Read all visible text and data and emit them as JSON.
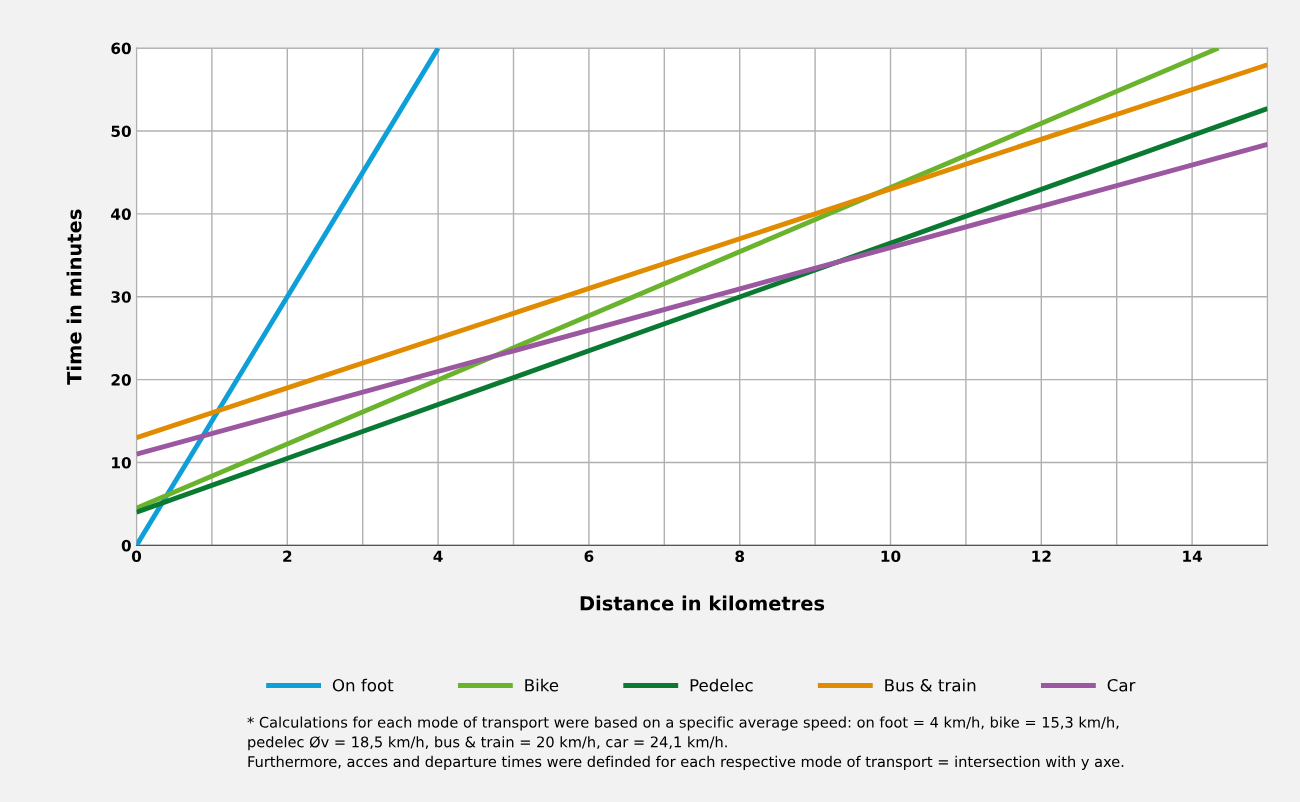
{
  "chart_data": {
    "type": "line",
    "xlabel": "Distance in kilometres",
    "ylabel": "Time in minutes",
    "series": [
      {
        "name": "On foot",
        "color": "#0d9fd8",
        "x": [
          0,
          4
        ],
        "values": [
          0,
          60
        ]
      },
      {
        "name": "Bike",
        "color": "#6ab42d",
        "x": [
          0,
          14.35
        ],
        "values": [
          4.5,
          60
        ]
      },
      {
        "name": "Pedelec",
        "color": "#0a7a33",
        "x": [
          0,
          15
        ],
        "values": [
          4,
          52.7
        ]
      },
      {
        "name": "Bus & train",
        "color": "#e08b00",
        "x": [
          0,
          15
        ],
        "values": [
          13,
          58
        ]
      },
      {
        "name": "Car",
        "color": "#9b58a0",
        "x": [
          0,
          15
        ],
        "values": [
          11,
          48.4
        ]
      }
    ],
    "xlim": [
      0,
      15
    ],
    "xticks": [
      0,
      {
        "value": 1,
        "label": null
      },
      2,
      {
        "value": 3,
        "label": null
      },
      4,
      {
        "value": 5,
        "label": null
      },
      6,
      {
        "value": 7,
        "label": null
      },
      8,
      {
        "value": 9,
        "label": null
      },
      10,
      {
        "value": 11,
        "label": null
      },
      12,
      {
        "value": 13,
        "label": null
      },
      14,
      {
        "value": 15,
        "label": null
      }
    ],
    "ylim": [
      0,
      60
    ],
    "yticks": [
      0,
      10,
      20,
      30,
      40,
      50,
      60
    ],
    "grid": true,
    "legend": "bottom",
    "marker": "none",
    "line_style": "solid",
    "annotations": [
      "* Calculations for each mode of transport were based on a specific average speed: on foot = 4 km/h, bike = 15,3 km/h,\npedelec Øv = 18,5 km/h, bus & train = 20 km/h, car = 24,1 km/h.\nFurthermore, acces and departure times were definded for each respective mode of transport = intersection with y axe."
    ]
  }
}
